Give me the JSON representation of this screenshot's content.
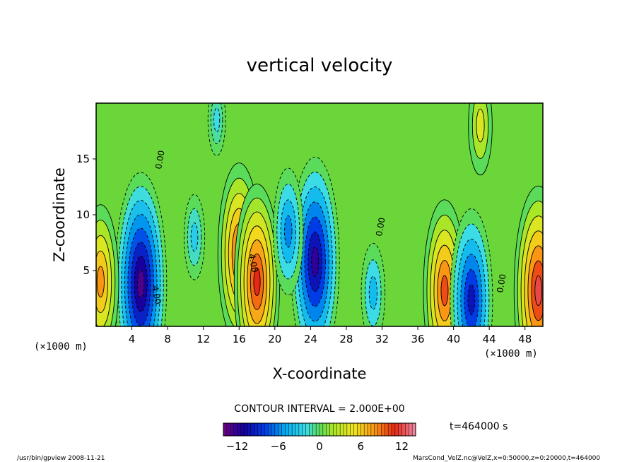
{
  "chart_data": {
    "type": "heatmap",
    "title": "vertical velocity",
    "xlabel": "X-coordinate",
    "ylabel": "Z-coordinate",
    "x_unit": "(×1000 m)",
    "z_unit": "(×1000 m)",
    "xlim": [
      0,
      50
    ],
    "ylim": [
      0,
      20
    ],
    "x_ticks": [
      4,
      8,
      12,
      16,
      20,
      24,
      28,
      32,
      36,
      40,
      44,
      48
    ],
    "y_ticks": [
      5,
      10,
      15
    ],
    "x_tick_labels": [
      "4",
      "8",
      "12",
      "16",
      "20",
      "24",
      "28",
      "32",
      "36",
      "40",
      "44",
      "48"
    ],
    "y_tick_labels": [
      "5",
      "10",
      "15"
    ],
    "contour_interval_text": "CONTOUR INTERVAL = 2.000E+00",
    "contour_labels": [
      "0.00",
      "4.00"
    ],
    "time_text": "t=464000 s",
    "colorbar": {
      "range": [
        -14,
        14
      ],
      "ticks": [
        -12,
        -6,
        0,
        6,
        12
      ],
      "tick_labels": [
        "−12",
        "−6",
        "0",
        "6",
        "12"
      ]
    },
    "field_features": [
      {
        "x": 5.0,
        "z": 3.8,
        "value": -13
      },
      {
        "x": 16.0,
        "z": 6.5,
        "value": 10
      },
      {
        "x": 18.0,
        "z": 4.0,
        "value": 11
      },
      {
        "x": 24.5,
        "z": 5.8,
        "value": -12
      },
      {
        "x": 21.5,
        "z": 8.5,
        "value": -6
      },
      {
        "x": 39.0,
        "z": 3.2,
        "value": 10
      },
      {
        "x": 42.0,
        "z": 2.4,
        "value": -10
      },
      {
        "x": 49.5,
        "z": 3.2,
        "value": 12
      },
      {
        "x": 0.5,
        "z": 4.0,
        "value": 8
      },
      {
        "x": 31.0,
        "z": 3.0,
        "value": -4
      },
      {
        "x": 11.0,
        "z": 8.0,
        "value": -3
      },
      {
        "x": 43.0,
        "z": 18.0,
        "value": 4
      },
      {
        "x": 13.5,
        "z": 18.5,
        "value": -2
      }
    ]
  },
  "footer": {
    "left_text": "/usr/bin/gpview  2008-11-21",
    "right_text": "MarsCond_VelZ.nc@VelZ,x=0:50000,z=0:20000,t=464000"
  }
}
